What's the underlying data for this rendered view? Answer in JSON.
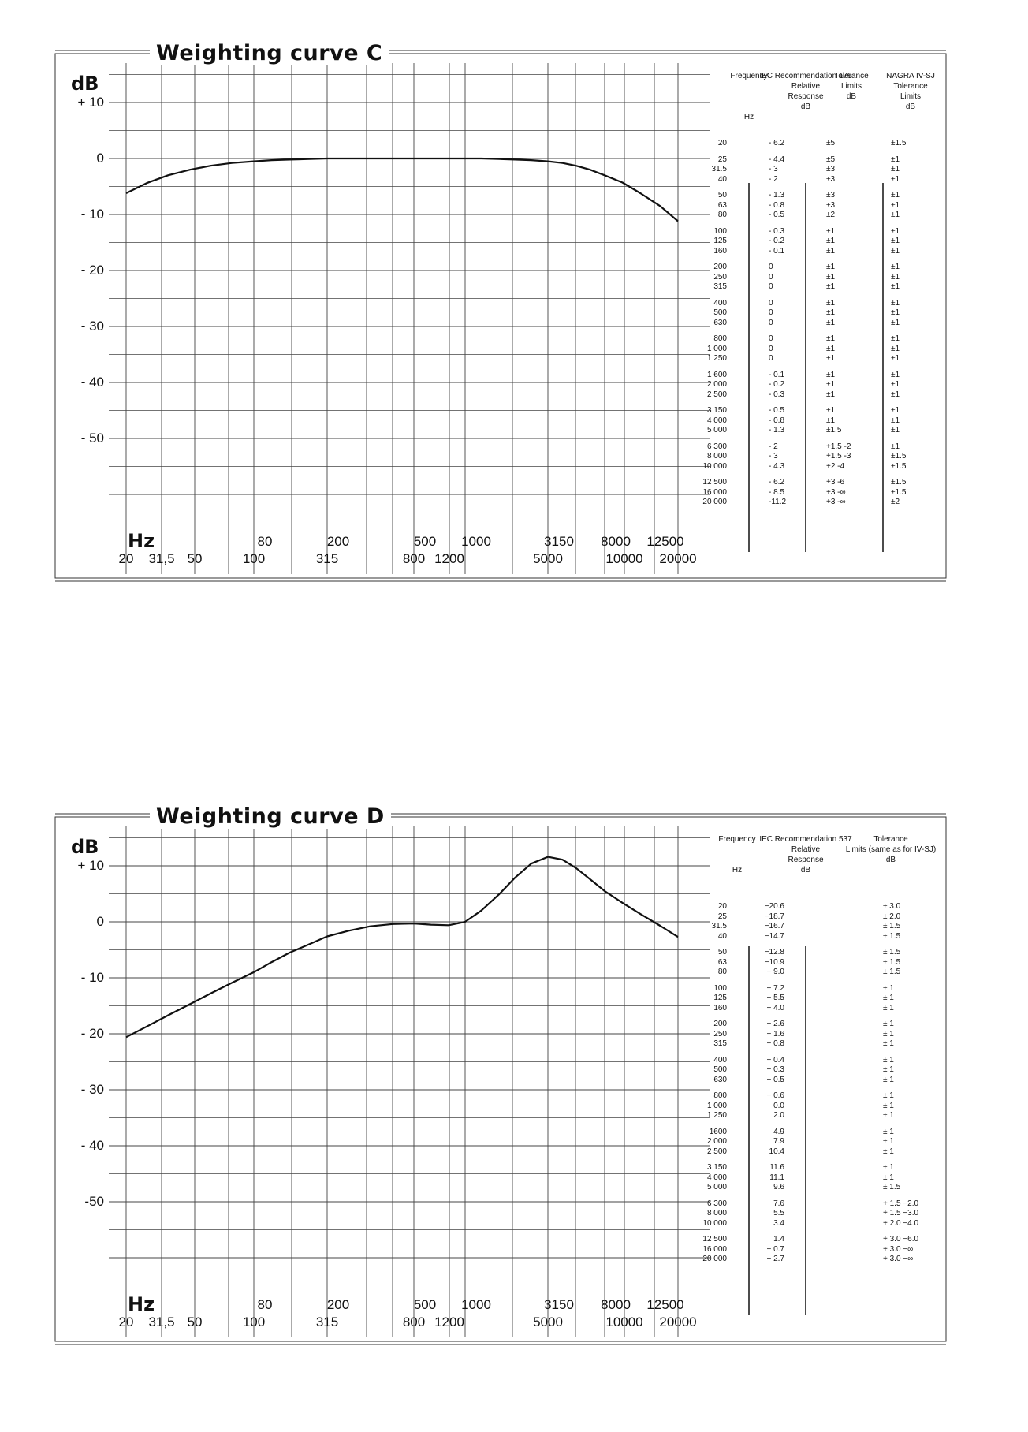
{
  "chart_data": [
    {
      "type": "line",
      "title": "Weighting curve C",
      "ylabel": "dB",
      "xlabel": "Hz",
      "y_ticks": [
        "+ 10",
        "0",
        "- 10",
        "- 20",
        "- 30",
        "- 40",
        "- 50"
      ],
      "x_ticks_upper": [
        "80",
        "200",
        "500",
        "1000",
        "3150",
        "8000",
        "12500"
      ],
      "x_ticks_lower": [
        "20",
        "31,5",
        "50",
        "100",
        "315",
        "800",
        "1200",
        "5000",
        "10000",
        "20000"
      ],
      "ylim": [
        -62,
        20
      ],
      "xscale": "log",
      "series": [
        {
          "x": [
            20,
            25,
            31.5,
            40,
            50,
            63,
            80,
            100,
            125,
            160,
            200,
            250,
            315,
            400,
            500,
            630,
            800,
            1000,
            1250,
            1600,
            2000,
            2500,
            3150,
            4000,
            5000,
            6300,
            8000,
            10000,
            12500,
            16000,
            20000
          ],
          "y": [
            -6.2,
            -4.4,
            -3,
            -2,
            -1.3,
            -0.8,
            -0.5,
            -0.3,
            -0.2,
            -0.1,
            0,
            0,
            0,
            0,
            0,
            0,
            0,
            0,
            0,
            -0.1,
            -0.2,
            -0.3,
            -0.5,
            -0.8,
            -1.3,
            -2,
            -3,
            -4.3,
            -6.2,
            -8.5,
            -11.2
          ]
        }
      ],
      "table": {
        "headers": [
          [
            "Frequency",
            "",
            "",
            "",
            "Hz"
          ],
          [
            "IEC Recommendation 179",
            "Relative",
            "Response",
            "dB"
          ],
          [
            "Tolerance",
            "Limits",
            "dB"
          ],
          [
            "NAGRA IV-SJ",
            "Tolerance",
            "Limits",
            "dB"
          ]
        ],
        "groups": [
          [
            [
              "20",
              "- 6.2",
              "±5",
              "±1.5"
            ]
          ],
          [
            [
              "25",
              "- 4.4",
              "±5",
              "±1"
            ],
            [
              "31.5",
              "- 3",
              "±3",
              "±1"
            ],
            [
              "40",
              "- 2",
              "±3",
              "±1"
            ]
          ],
          [
            [
              "50",
              "- 1.3",
              "±3",
              "±1"
            ],
            [
              "63",
              "- 0.8",
              "±3",
              "±1"
            ],
            [
              "80",
              "- 0.5",
              "±2",
              "±1"
            ]
          ],
          [
            [
              "100",
              "- 0.3",
              "±1",
              "±1"
            ],
            [
              "125",
              "- 0.2",
              "±1",
              "±1"
            ],
            [
              "160",
              "- 0.1",
              "±1",
              "±1"
            ]
          ],
          [
            [
              "200",
              "0",
              "±1",
              "±1"
            ],
            [
              "250",
              "0",
              "±1",
              "±1"
            ],
            [
              "315",
              "0",
              "±1",
              "±1"
            ]
          ],
          [
            [
              "400",
              "0",
              "±1",
              "±1"
            ],
            [
              "500",
              "0",
              "±1",
              "±1"
            ],
            [
              "630",
              "0",
              "±1",
              "±1"
            ]
          ],
          [
            [
              "800",
              "0",
              "±1",
              "±1"
            ],
            [
              "1 000",
              "0",
              "±1",
              "±1"
            ],
            [
              "1 250",
              "0",
              "±1",
              "±1"
            ]
          ],
          [
            [
              "1 600",
              "- 0.1",
              "±1",
              "±1"
            ],
            [
              "2 000",
              "- 0.2",
              "±1",
              "±1"
            ],
            [
              "2 500",
              "- 0.3",
              "±1",
              "±1"
            ]
          ],
          [
            [
              "3 150",
              "- 0.5",
              "±1",
              "±1"
            ],
            [
              "4 000",
              "- 0.8",
              "±1",
              "±1"
            ],
            [
              "5 000",
              "- 1.3",
              "±1.5",
              "±1"
            ]
          ],
          [
            [
              "6 300",
              "- 2",
              "+1.5  -2",
              "±1"
            ],
            [
              "8 000",
              "- 3",
              "+1.5  -3",
              "±1.5"
            ],
            [
              "10 000",
              "- 4.3",
              "+2    -4",
              "±1.5"
            ]
          ],
          [
            [
              "12 500",
              "- 6.2",
              "+3    -6",
              "±1.5"
            ],
            [
              "16 000",
              "- 8.5",
              "+3    -∞",
              "±1.5"
            ],
            [
              "20 000",
              "-11.2",
              "+3    -∞",
              "±2"
            ]
          ]
        ]
      }
    },
    {
      "type": "line",
      "title": "Weighting curve D",
      "ylabel": "dB",
      "xlabel": "Hz",
      "y_ticks": [
        "+ 10",
        "0",
        "- 10",
        "- 20",
        "- 30",
        "- 40",
        "-50"
      ],
      "x_ticks_upper": [
        "80",
        "200",
        "500",
        "1000",
        "3150",
        "8000",
        "12500"
      ],
      "x_ticks_lower": [
        "20",
        "31,5",
        "50",
        "100",
        "315",
        "800",
        "1200",
        "5000",
        "10000",
        "20000"
      ],
      "ylim": [
        -62,
        20
      ],
      "xscale": "log",
      "series": [
        {
          "x": [
            20,
            25,
            31.5,
            40,
            50,
            63,
            80,
            100,
            125,
            160,
            200,
            250,
            315,
            400,
            500,
            630,
            800,
            1000,
            1250,
            1600,
            2000,
            2500,
            3150,
            4000,
            5000,
            6300,
            8000,
            10000,
            12500,
            16000,
            20000
          ],
          "y": [
            -20.6,
            -18.7,
            -16.7,
            -14.7,
            -12.8,
            -10.9,
            -9.0,
            -7.2,
            -5.5,
            -4.0,
            -2.6,
            -1.6,
            -0.8,
            -0.4,
            -0.3,
            -0.5,
            -0.6,
            0.0,
            2.0,
            4.9,
            7.9,
            10.4,
            11.6,
            11.1,
            9.6,
            7.6,
            5.5,
            3.4,
            1.4,
            -0.7,
            -2.7
          ]
        }
      ],
      "table": {
        "headers": [
          [
            "Frequency",
            "",
            "",
            "Hz"
          ],
          [
            "IEC Recommendation 537",
            "Relative",
            "Response",
            "dB"
          ],
          [
            "Tolerance",
            "Limits (same as for IV-SJ)",
            "dB"
          ]
        ],
        "groups": [
          [
            [
              "20",
              "−20.6",
              "± 3.0"
            ],
            [
              "25",
              "−18.7",
              "± 2.0"
            ],
            [
              "31.5",
              "−16.7",
              "± 1.5"
            ],
            [
              "40",
              "−14.7",
              "± 1.5"
            ]
          ],
          [
            [
              "50",
              "−12.8",
              "± 1.5"
            ],
            [
              "63",
              "−10.9",
              "± 1.5"
            ],
            [
              "80",
              "− 9.0",
              "± 1.5"
            ]
          ],
          [
            [
              "100",
              "− 7.2",
              "± 1"
            ],
            [
              "125",
              "− 5.5",
              "± 1"
            ],
            [
              "160",
              "− 4.0",
              "± 1"
            ]
          ],
          [
            [
              "200",
              "− 2.6",
              "± 1"
            ],
            [
              "250",
              "− 1.6",
              "± 1"
            ],
            [
              "315",
              "− 0.8",
              "± 1"
            ]
          ],
          [
            [
              "400",
              "− 0.4",
              "± 1"
            ],
            [
              "500",
              "− 0.3",
              "± 1"
            ],
            [
              "630",
              "− 0.5",
              "± 1"
            ]
          ],
          [
            [
              "800",
              "− 0.6",
              "± 1"
            ],
            [
              "1 000",
              "0.0",
              "± 1"
            ],
            [
              "1 250",
              "2.0",
              "± 1"
            ]
          ],
          [
            [
              "1600",
              "4.9",
              "± 1"
            ],
            [
              "2 000",
              "7.9",
              "± 1"
            ],
            [
              "2 500",
              "10.4",
              "± 1"
            ]
          ],
          [
            [
              "3 150",
              "11.6",
              "± 1"
            ],
            [
              "4 000",
              "11.1",
              "± 1"
            ],
            [
              "5 000",
              "9.6",
              "± 1.5"
            ]
          ],
          [
            [
              "6 300",
              "7.6",
              "+ 1.5  −2.0"
            ],
            [
              "8 000",
              "5.5",
              "+ 1.5  −3.0"
            ],
            [
              "10 000",
              "3.4",
              "+ 2.0  −4.0"
            ]
          ],
          [
            [
              "12 500",
              "1.4",
              "+ 3.0  −6.0"
            ],
            [
              "16 000",
              "− 0.7",
              "+ 3.0  −∞"
            ],
            [
              "20 000",
              "− 2.7",
              "+ 3.0  −∞"
            ]
          ]
        ]
      }
    }
  ]
}
